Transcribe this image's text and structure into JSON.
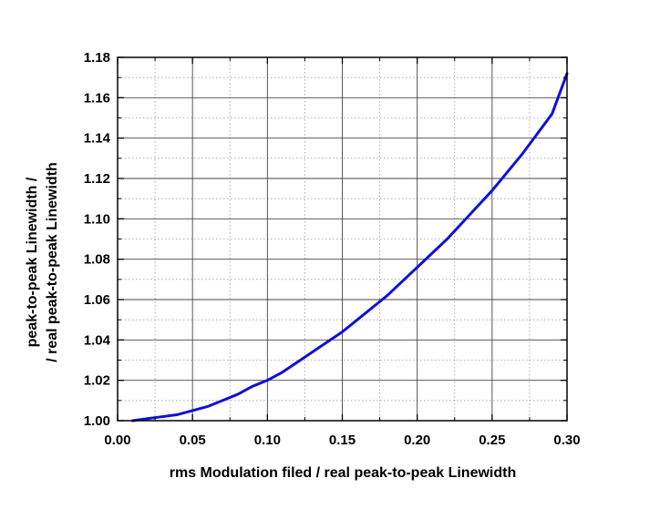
{
  "chart_data": {
    "type": "line",
    "title": "",
    "xlabel": "rms Modulation filed / real peak-to-peak Linewidth",
    "ylabel_line1": "peak-to-peak Linewidth /",
    "ylabel_line2": "/ real peak-to-peak Linewidth",
    "xlim": [
      0.0,
      0.3
    ],
    "ylim": [
      1.0,
      1.18
    ],
    "x_ticks": [
      0.0,
      0.05,
      0.1,
      0.15,
      0.2,
      0.25,
      0.3
    ],
    "x_tick_labels": [
      "0.00",
      "0.05",
      "0.10",
      "0.15",
      "0.20",
      "0.25",
      "0.30"
    ],
    "y_ticks": [
      1.0,
      1.02,
      1.04,
      1.06,
      1.08,
      1.1,
      1.12,
      1.14,
      1.16,
      1.18
    ],
    "y_tick_labels": [
      "1.00",
      "1.02",
      "1.04",
      "1.06",
      "1.08",
      "1.10",
      "1.12",
      "1.14",
      "1.16",
      "1.18"
    ],
    "grid": true,
    "minor_grid": true,
    "legend": "none",
    "series": [
      {
        "color": "#1010d8",
        "x": [
          0.01,
          0.02,
          0.03,
          0.04,
          0.05,
          0.06,
          0.07,
          0.08,
          0.09,
          0.1,
          0.11,
          0.12,
          0.13,
          0.14,
          0.15,
          0.16,
          0.17,
          0.18,
          0.19,
          0.2,
          0.21,
          0.22,
          0.23,
          0.24,
          0.25,
          0.26,
          0.27,
          0.28,
          0.29,
          0.3
        ],
        "y": [
          1.0,
          1.001,
          1.002,
          1.003,
          1.005,
          1.007,
          1.01,
          1.013,
          1.017,
          1.02,
          1.024,
          1.029,
          1.034,
          1.039,
          1.044,
          1.05,
          1.056,
          1.062,
          1.069,
          1.076,
          1.083,
          1.09,
          1.098,
          1.106,
          1.114,
          1.123,
          1.132,
          1.142,
          1.152,
          1.172
        ]
      }
    ]
  }
}
